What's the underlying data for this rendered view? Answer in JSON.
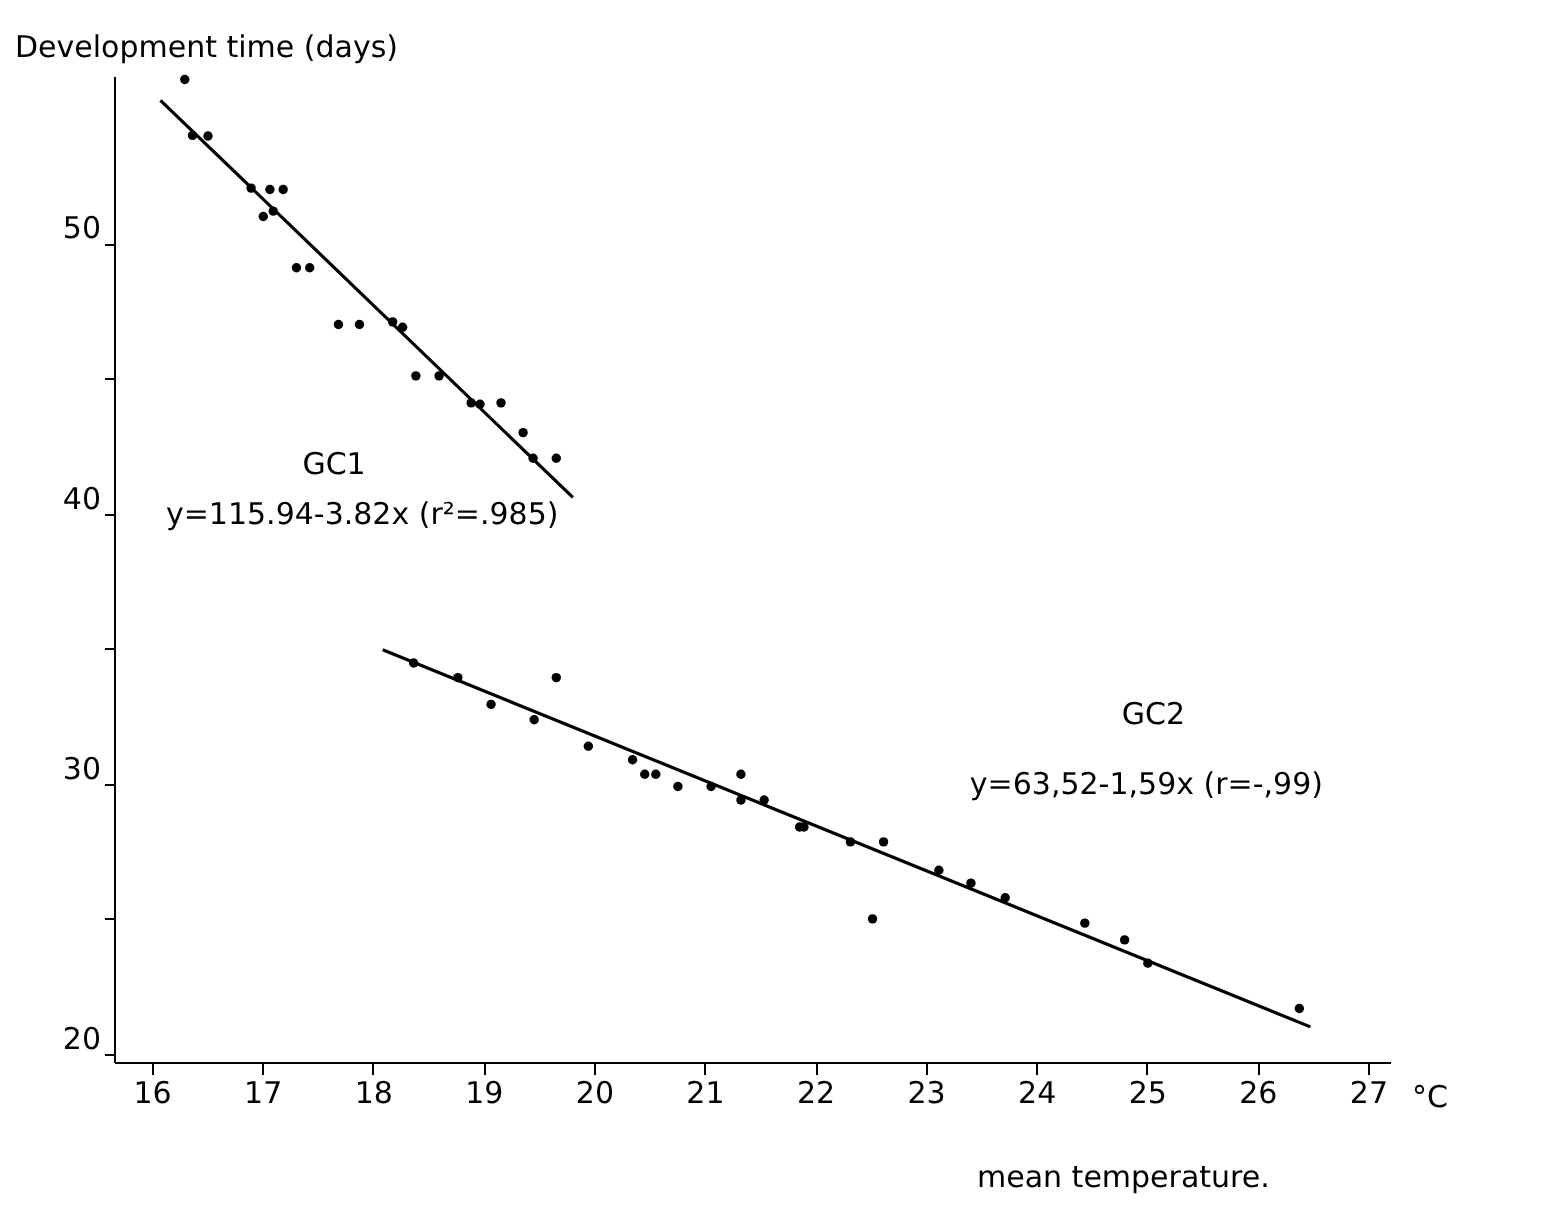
{
  "chart_data": {
    "type": "scatter",
    "ylabel": "Development time (days)",
    "xlabel": "mean temperature.",
    "annotations": [
      "GC1",
      "y=115.94-3.82x (r²=.985)",
      "GC2",
      "y=63,52-1,59x (r=-,99)",
      "°C"
    ],
    "xlim": [
      15.66,
      27.2
    ],
    "xticks": [
      16,
      17,
      18,
      19,
      20,
      21,
      22,
      23,
      24,
      25,
      26,
      27
    ],
    "ylim": [
      19.7,
      56.2
    ],
    "yticks": [
      20,
      {
        "value": 25,
        "label": null
      },
      30,
      {
        "value": 35,
        "label": null
      },
      40,
      {
        "value": 45,
        "label": null
      },
      50
    ],
    "grid": false,
    "marker": "circle",
    "series": [
      {
        "color": "#000000",
        "x": [
          16.3,
          16.37,
          16.51,
          16.9,
          17.07,
          17.19,
          17.01,
          17.1,
          17.31,
          17.43,
          17.69,
          17.88,
          18.18,
          18.27,
          18.39,
          18.6,
          18.89,
          18.97,
          19.16,
          19.36,
          19.45,
          19.66
        ],
        "values": [
          56.07,
          54.0,
          53.98,
          52.05,
          52.0,
          52.0,
          51.0,
          51.2,
          49.1,
          49.1,
          47.0,
          47.0,
          47.1,
          46.9,
          45.1,
          45.1,
          44.1,
          44.05,
          44.1,
          43.0,
          42.05,
          42.05
        ]
      },
      {
        "type": "line",
        "marker": "none",
        "color": "#000000",
        "x": [
          16.08,
          19.81
        ],
        "values": [
          55.3,
          40.6
        ]
      },
      {
        "color": "#000000",
        "x": [
          18.37,
          18.77,
          19.07,
          19.46,
          19.66,
          19.95,
          20.35,
          20.46,
          20.56,
          20.76,
          21.06,
          21.33,
          21.33,
          21.54,
          21.86,
          21.9,
          22.32,
          22.62,
          22.52,
          23.12,
          23.41,
          23.72,
          24.44,
          24.8,
          25.01,
          26.38
        ],
        "values": [
          34.47,
          33.93,
          32.94,
          32.37,
          33.93,
          31.39,
          30.89,
          30.35,
          30.35,
          29.9,
          29.9,
          30.35,
          29.4,
          29.4,
          28.4,
          28.4,
          27.85,
          27.85,
          25.0,
          26.8,
          26.32,
          25.78,
          24.84,
          24.22,
          23.36,
          21.68
        ]
      },
      {
        "type": "line",
        "marker": "none",
        "color": "#000000",
        "x": [
          18.09,
          26.48
        ],
        "values": [
          34.96,
          21.0
        ]
      }
    ]
  }
}
